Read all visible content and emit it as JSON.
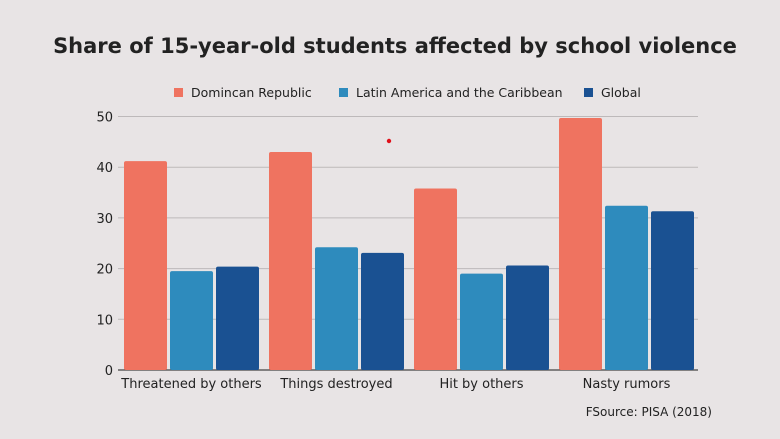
{
  "chart_data": {
    "type": "bar",
    "title": "Share of 15-year-old students affected by school violence",
    "categories": [
      "Threatened by others",
      "Things destroyed",
      "Hit by others",
      "Nasty rumors"
    ],
    "series": [
      {
        "name": "Domincan Republic",
        "color": "#ef7360",
        "values": [
          41.2,
          43.0,
          35.8,
          49.7
        ]
      },
      {
        "name": "Latin America and the Caribbean",
        "color": "#2e8bbd",
        "values": [
          19.5,
          24.2,
          19.0,
          32.4
        ]
      },
      {
        "name": "Global",
        "color": "#1a5192",
        "values": [
          20.4,
          23.1,
          20.6,
          31.3
        ]
      }
    ],
    "ylim": [
      0,
      50
    ],
    "yticks": [
      0,
      10,
      20,
      30,
      40,
      50
    ],
    "grid": true,
    "legend_placement": "top",
    "xlabel": "",
    "ylabel": "",
    "source": "FSource: PISA (2018)"
  }
}
